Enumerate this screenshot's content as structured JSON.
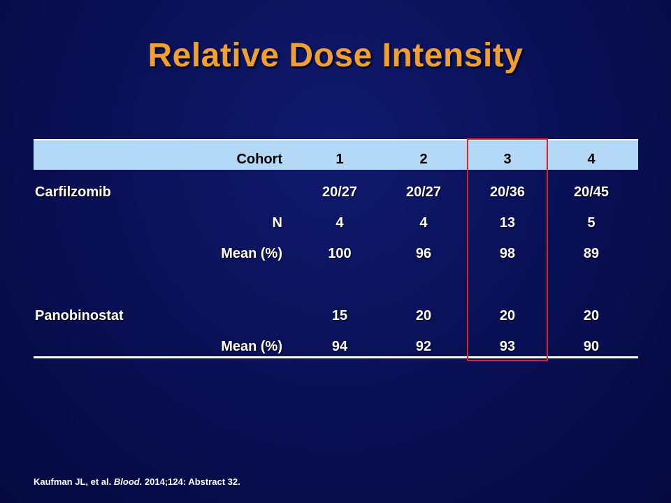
{
  "slide": {
    "title": "Relative Dose Intensity"
  },
  "table": {
    "header": {
      "label": "Cohort",
      "values": [
        "1",
        "2",
        "3",
        "4"
      ]
    },
    "rows": [
      {
        "drug": "Carfilzomib",
        "label": "",
        "values": [
          "20/27",
          "20/27",
          "20/36",
          "20/45"
        ]
      },
      {
        "drug": "",
        "label": "N",
        "values": [
          "4",
          "4",
          "13",
          "5"
        ]
      },
      {
        "drug": "",
        "label": "Mean (%)",
        "values": [
          "100",
          "96",
          "98",
          "89"
        ]
      },
      {
        "drug": "Panobinostat",
        "label": "",
        "values": [
          "15",
          "20",
          "20",
          "20"
        ]
      },
      {
        "drug": "",
        "label": "Mean (%)",
        "values": [
          "94",
          "92",
          "93",
          "90"
        ]
      }
    ],
    "highlighted_cohort": "3"
  },
  "citation": {
    "authors": "Kaufman JL, et al.",
    "journal": "Blood.",
    "details": "2014;124: Abstract 32."
  },
  "colors": {
    "title": "#f0a030",
    "header_band": "#b3d9f7",
    "highlight": "#e31e24",
    "background": "#0a1158"
  }
}
